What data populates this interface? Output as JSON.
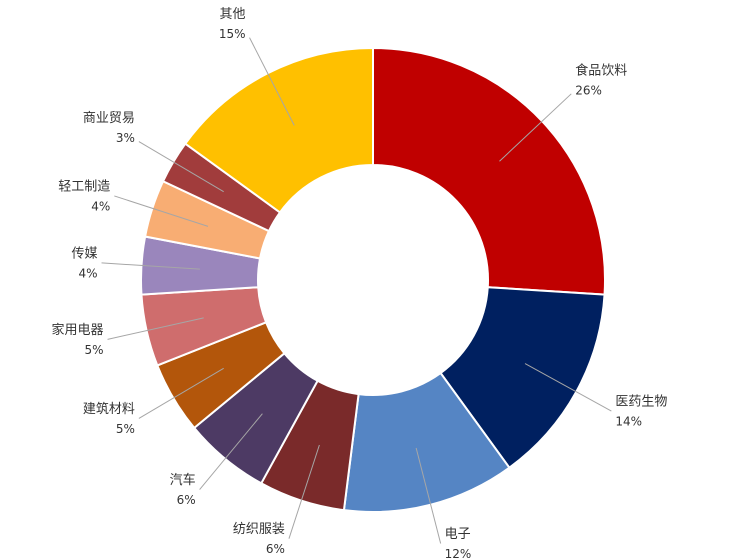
{
  "chart_data": {
    "type": "donut",
    "categories": [
      "食品饮料",
      "医药生物",
      "电子",
      "纺织服装",
      "汽车",
      "建筑材料",
      "家用电器",
      "传媒",
      "轻工制造",
      "商业贸易",
      "其他"
    ],
    "values": [
      26,
      14,
      12,
      6,
      6,
      5,
      5,
      4,
      4,
      3,
      15
    ],
    "value_labels": [
      "26%",
      "14%",
      "12%",
      "6%",
      "6%",
      "5%",
      "5%",
      "4%",
      "4%",
      "3%",
      "15%"
    ],
    "colors": [
      "#c00000",
      "#002060",
      "#5585c4",
      "#7a2a2a",
      "#4d3a64",
      "#b3560b",
      "#cf6d6d",
      "#9a86bc",
      "#f8ad73",
      "#a13c3c",
      "#ffc000"
    ]
  }
}
